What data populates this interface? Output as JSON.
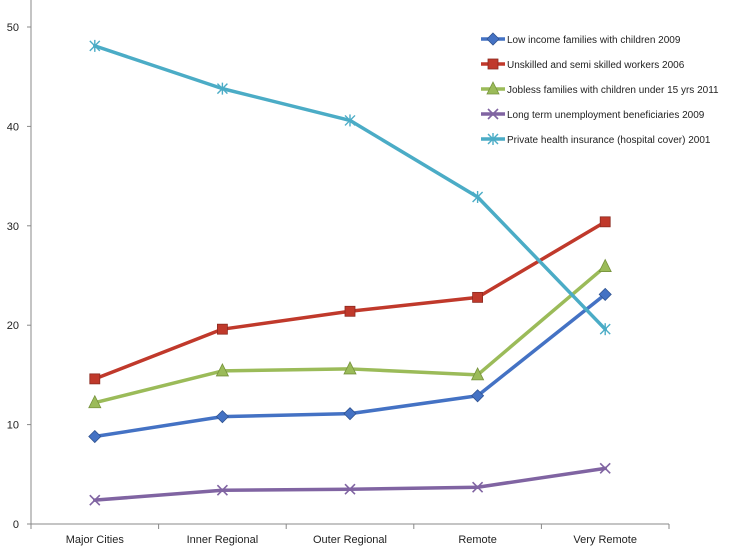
{
  "chart_data": {
    "type": "line",
    "title": "",
    "xlabel": "",
    "ylabel": "",
    "categories": [
      "Major Cities",
      "Inner Regional",
      "Outer Regional",
      "Remote",
      "Very Remote"
    ],
    "ylim": [
      0,
      50
    ],
    "yticks": [
      0,
      10,
      20,
      30,
      40,
      50
    ],
    "grid": false,
    "legend_position": "top-right",
    "series": [
      {
        "name": "Low income families with children 2009",
        "color": "#4472C4",
        "marker": "diamond",
        "values": [
          8.8,
          10.8,
          11.1,
          12.9,
          23.1
        ]
      },
      {
        "name": "Unskilled and semi skilled workers 2006",
        "color": "#C0392B",
        "marker": "square",
        "values": [
          14.6,
          19.6,
          21.4,
          22.8,
          30.4
        ]
      },
      {
        "name": "Jobless families with children under 15 yrs 2011",
        "color": "#9BBB59",
        "marker": "triangle",
        "values": [
          12.2,
          15.4,
          15.6,
          15.0,
          25.9
        ]
      },
      {
        "name": "Long term unemployment beneficiaries 2009",
        "color": "#8064A2",
        "marker": "x",
        "values": [
          2.4,
          3.4,
          3.5,
          3.7,
          5.6
        ]
      },
      {
        "name": "Private health insurance (hospital cover) 2001",
        "color": "#4BACC6",
        "marker": "star",
        "values": [
          48.1,
          43.8,
          40.6,
          32.9,
          19.6
        ]
      }
    ]
  }
}
